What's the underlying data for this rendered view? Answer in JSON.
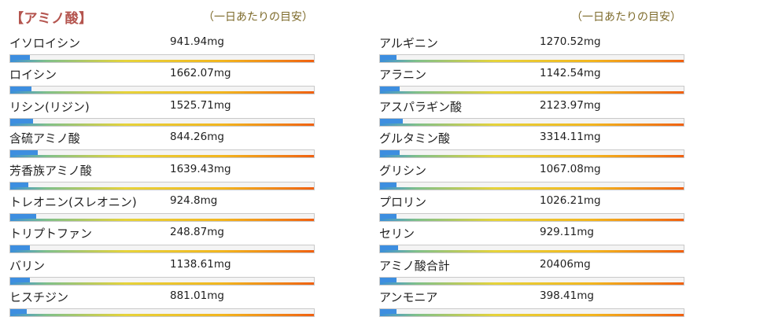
{
  "section_title": "【アミノ酸】",
  "daily_guide_left": "（一日あたりの目安）",
  "daily_guide_right": "（一日あたりの目安）",
  "left_column": [
    {
      "name": "イソロイシン",
      "value": "941.94mg",
      "level": 0.065
    },
    {
      "name": "ロイシン",
      "value": "1662.07mg",
      "level": 0.07
    },
    {
      "name": "リシン(リジン)",
      "value": "1525.71mg",
      "level": 0.075
    },
    {
      "name": "含硫アミノ酸",
      "value": "844.26mg",
      "level": 0.09
    },
    {
      "name": "芳香族アミノ酸",
      "value": "1639.43mg",
      "level": 0.06
    },
    {
      "name": "トレオニン(スレオニン)",
      "value": "924.8mg",
      "level": 0.085
    },
    {
      "name": "トリプトファン",
      "value": "248.87mg",
      "level": 0.065
    },
    {
      "name": "バリン",
      "value": "1138.61mg",
      "level": 0.065
    },
    {
      "name": "ヒスチジン",
      "value": "881.01mg",
      "level": 0.055
    }
  ],
  "right_column": [
    {
      "name": "アルギニン",
      "value": "1270.52mg",
      "level": 0.055
    },
    {
      "name": "アラニン",
      "value": "1142.54mg",
      "level": 0.065
    },
    {
      "name": "アスパラギン酸",
      "value": "2123.97mg",
      "level": 0.075
    },
    {
      "name": "グルタミン酸",
      "value": "3314.11mg",
      "level": 0.065
    },
    {
      "name": "グリシン",
      "value": "1067.08mg",
      "level": 0.055
    },
    {
      "name": "プロリン",
      "value": "1026.21mg",
      "level": 0.055
    },
    {
      "name": "セリン",
      "value": "929.11mg",
      "level": 0.06
    },
    {
      "name": "アミノ酸合計",
      "value": "20406mg",
      "level": 0.055
    },
    {
      "name": "アンモニア",
      "value": "398.41mg",
      "level": 0.055
    }
  ],
  "colors": {
    "title": "#b4544e",
    "guide": "#7d6a2a",
    "fill": "#3d8ee0"
  }
}
